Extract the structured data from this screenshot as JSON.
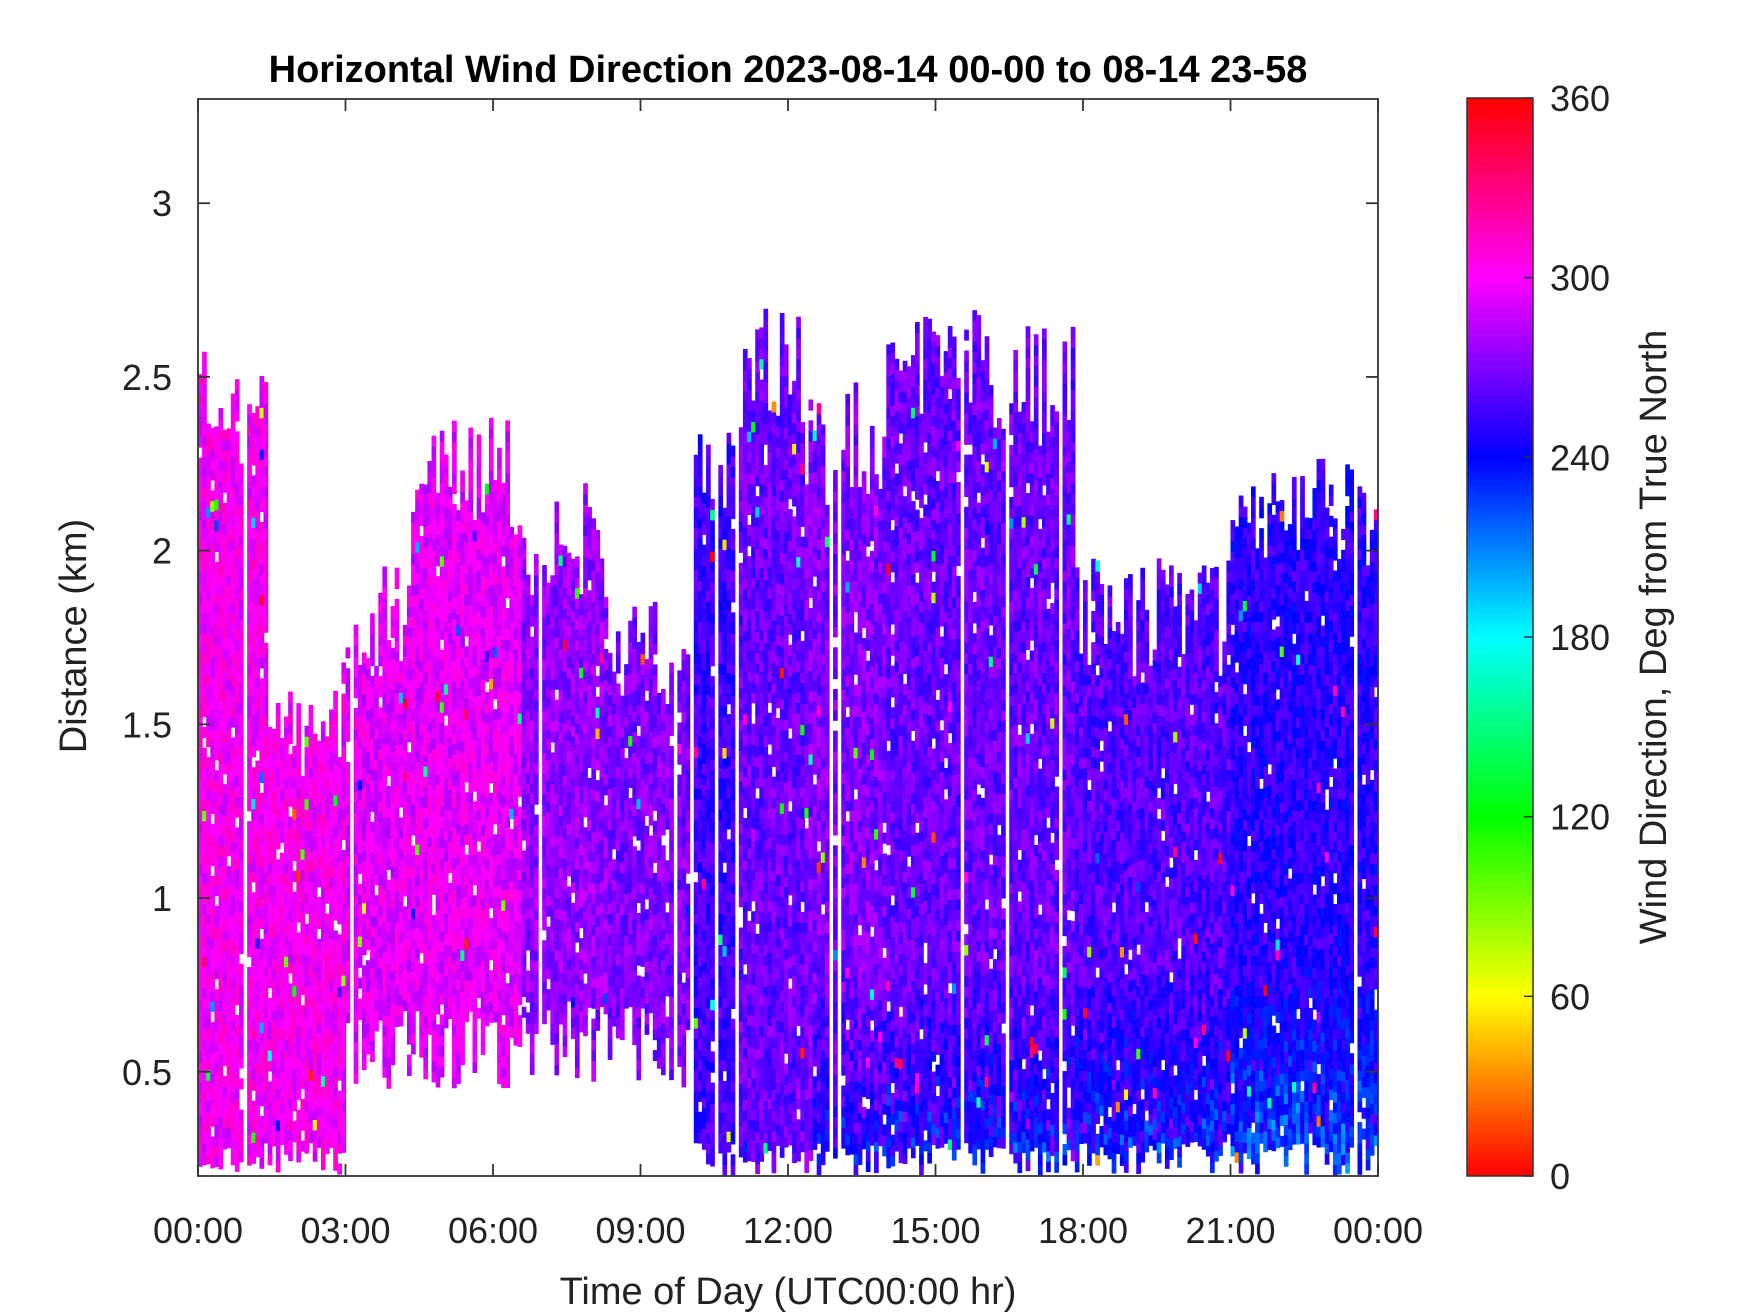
{
  "chart_data": {
    "type": "heatmap",
    "title": "Horizontal Wind Direction 2023-08-14 00-00 to 08-14 23-58",
    "xlabel": "Time of Day (UTC00:00 hr)",
    "ylabel": "Distance (km)",
    "x_tick_labels": [
      "00:00",
      "03:00",
      "06:00",
      "09:00",
      "12:00",
      "15:00",
      "18:00",
      "21:00",
      "00:00"
    ],
    "xlim_hours": [
      0,
      24
    ],
    "y_ticks": [
      0.5,
      1,
      1.5,
      2,
      2.5,
      3
    ],
    "y_tick_labels": [
      "0.5",
      "1",
      "1.5",
      "2",
      "2.5",
      "3"
    ],
    "ylim": [
      0.2,
      3.3
    ],
    "colorbar": {
      "label": "Wind Direction, Deg from True North",
      "ticks": [
        0,
        60,
        120,
        180,
        240,
        300,
        360
      ],
      "tick_labels": [
        "0",
        "60",
        "120",
        "180",
        "240",
        "300",
        "360"
      ],
      "range": [
        0,
        360
      ],
      "colormap": [
        "#ff0000",
        "#ffff00",
        "#00ff00",
        "#00ffff",
        "#0000ff",
        "#ff00ff",
        "#ff0000"
      ]
    },
    "grid": false,
    "approx_profile": [
      {
        "t_start": 0.0,
        "t_end": 1.4,
        "top_km": 2.4,
        "direction_deg": 300
      },
      {
        "t_start": 1.4,
        "t_end": 3.0,
        "top_km": 1.5,
        "direction_deg": 300
      },
      {
        "t_start": 3.0,
        "t_end": 4.3,
        "top_km": 1.8,
        "direction_deg": 295
      },
      {
        "t_start": 4.3,
        "t_end": 6.6,
        "top_km": 2.2,
        "direction_deg": 295
      },
      {
        "t_start": 6.6,
        "t_end": 8.3,
        "top_km": 2.0,
        "direction_deg": 275
      },
      {
        "t_start": 8.3,
        "t_end": 10.1,
        "top_km": 1.7,
        "direction_deg": 270
      },
      {
        "t_start": 10.1,
        "t_end": 11.0,
        "top_km": 2.2,
        "direction_deg": 255
      },
      {
        "t_start": 11.0,
        "t_end": 12.3,
        "top_km": 2.5,
        "direction_deg": 265
      },
      {
        "t_start": 12.3,
        "t_end": 14.0,
        "top_km": 2.3,
        "direction_deg": 270
      },
      {
        "t_start": 14.0,
        "t_end": 17.8,
        "top_km": 2.5,
        "direction_deg": 265
      },
      {
        "t_start": 17.8,
        "t_end": 21.0,
        "top_km": 1.8,
        "direction_deg": 260
      },
      {
        "t_start": 21.0,
        "t_end": 24.0,
        "top_km": 2.1,
        "direction_deg": 250
      }
    ]
  }
}
